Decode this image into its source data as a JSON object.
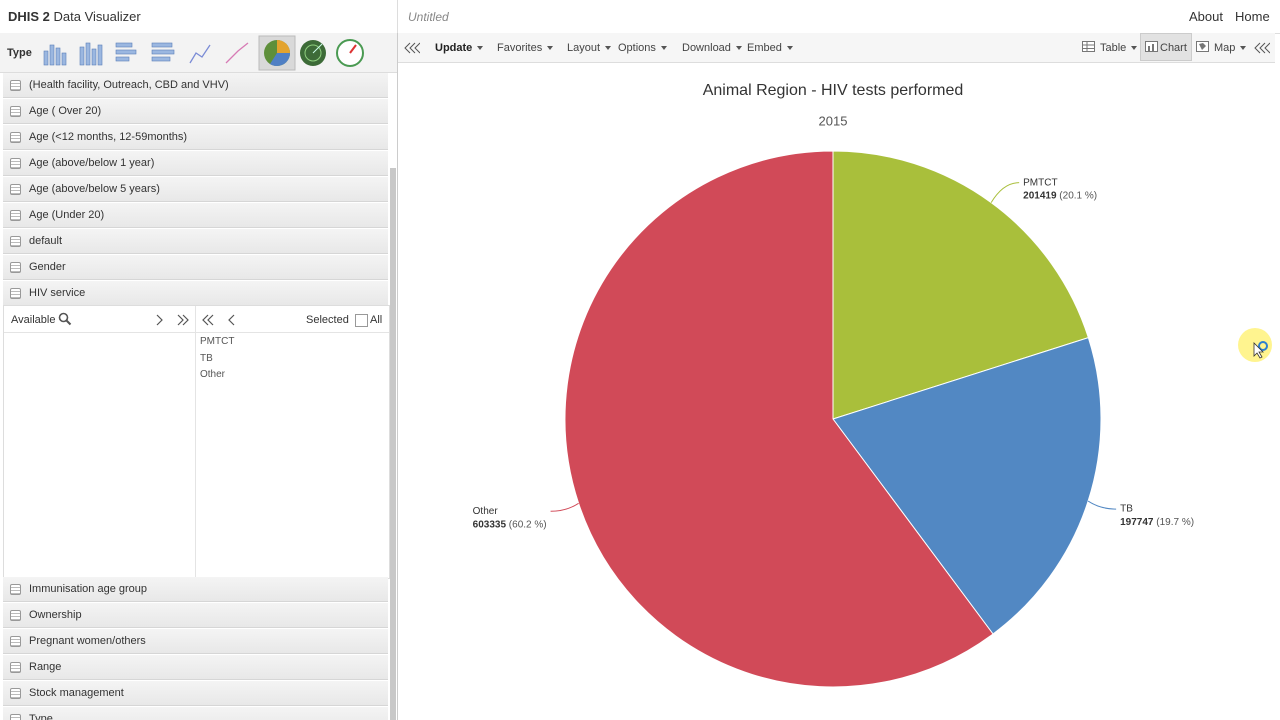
{
  "header": {
    "brand": "DHIS 2",
    "app": "Data Visualizer",
    "favorite": "Untitled",
    "links": [
      "About",
      "Home"
    ]
  },
  "type_label": "Type",
  "toolbar": {
    "left": [
      "Update",
      "Favorites",
      "Layout",
      "Options",
      "Download",
      "Embed"
    ],
    "right": [
      "Table",
      "Chart",
      "Map"
    ]
  },
  "dimensions_top": [
    "(Health facility, Outreach, CBD and VHV)",
    "Age ( Over 20)",
    "Age (<12 months, 12-59months)",
    "Age (above/below 1 year)",
    "Age (above/below 5 years)",
    "Age (Under 20)",
    "default",
    "Gender",
    "HIV service"
  ],
  "selector": {
    "available": "Available",
    "selected": "Selected",
    "all": "All",
    "items": [
      "PMTCT",
      "TB",
      "Other"
    ]
  },
  "dimensions_bottom": [
    "Immunisation age group",
    "Ownership",
    "Pregnant women/others",
    "Range",
    "Stock management",
    "Type"
  ],
  "chart_data": {
    "type": "pie",
    "title": "Animal Region - HIV tests performed",
    "subtitle": "2015",
    "categories": [
      "PMTCT",
      "TB",
      "Other"
    ],
    "values": [
      201419,
      197747,
      603335
    ],
    "percent_labels": [
      "(20.1 %)",
      "(19.7 %)",
      "(60.2 %)"
    ],
    "colors": [
      "#a9bf3b",
      "#5288c3",
      "#d14a58"
    ]
  }
}
